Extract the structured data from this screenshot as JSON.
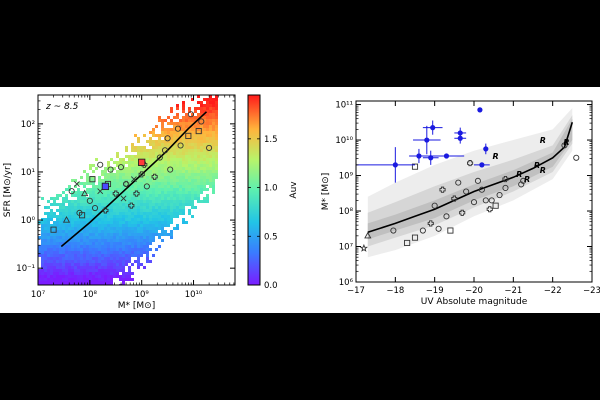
{
  "chart_data": [
    {
      "type": "scatter",
      "name": "sfr-vs-stellar-mass",
      "annotation": "z ~ 8.5",
      "xlabel": "M* [M⊙]",
      "ylabel": "SFR [M⊙/yr]",
      "xscale": "log",
      "yscale": "log",
      "xlim_log10": [
        7.0,
        10.8
      ],
      "ylim_log10": [
        -1.35,
        2.6
      ],
      "x_ticks": [
        {
          "v": 7,
          "label": "10⁷"
        },
        {
          "v": 8,
          "label": "10⁸"
        },
        {
          "v": 9,
          "label": "10⁹"
        },
        {
          "v": 10,
          "label": "10¹⁰"
        }
      ],
      "y_ticks": [
        {
          "v": -1,
          "label": "10⁻¹"
        },
        {
          "v": 0,
          "label": "10⁰"
        },
        {
          "v": 1,
          "label": "10¹"
        },
        {
          "v": 2,
          "label": "10²"
        }
      ],
      "colorbar": {
        "label": "Auv",
        "min": 0.0,
        "max": 1.95,
        "ticks": [
          {
            "v": 0.0,
            "label": "0.0"
          },
          {
            "v": 0.5,
            "label": "0.5"
          },
          {
            "v": 1.0,
            "label": "1.0"
          },
          {
            "v": 1.5,
            "label": "1.5"
          }
        ]
      },
      "mean_relation": {
        "x": [
          7.45,
          8.0,
          8.5,
          9.0,
          9.5,
          9.9,
          10.25
        ],
        "y": [
          -0.55,
          -0.05,
          0.45,
          0.95,
          1.45,
          1.9,
          2.25
        ]
      },
      "observations": [
        {
          "x": 7.3,
          "y": -0.2,
          "m": "square"
        },
        {
          "x": 7.55,
          "y": 0.0,
          "m": "triangle"
        },
        {
          "x": 7.65,
          "y": 0.6,
          "m": "circle"
        },
        {
          "x": 7.8,
          "y": 0.15,
          "m": "circle"
        },
        {
          "x": 7.85,
          "y": 0.1,
          "m": "square"
        },
        {
          "x": 7.9,
          "y": 0.55,
          "m": "triangle"
        },
        {
          "x": 7.75,
          "y": 0.75,
          "m": "x"
        },
        {
          "x": 8.0,
          "y": 0.4,
          "m": "circle"
        },
        {
          "x": 8.05,
          "y": 0.85,
          "m": "square"
        },
        {
          "x": 8.1,
          "y": 0.25,
          "m": "circle"
        },
        {
          "x": 8.2,
          "y": 0.6,
          "m": "x"
        },
        {
          "x": 8.3,
          "y": 0.2,
          "m": "cross"
        },
        {
          "x": 8.35,
          "y": 0.75,
          "m": "square"
        },
        {
          "x": 8.5,
          "y": 0.55,
          "m": "cross"
        },
        {
          "x": 8.4,
          "y": 1.05,
          "m": "circle"
        },
        {
          "x": 8.2,
          "y": 1.15,
          "m": "circle"
        },
        {
          "x": 8.6,
          "y": 1.1,
          "m": "circle"
        },
        {
          "x": 8.65,
          "y": 0.45,
          "m": "x"
        },
        {
          "x": 8.7,
          "y": 0.75,
          "m": "cross"
        },
        {
          "x": 8.8,
          "y": 0.3,
          "m": "cross"
        },
        {
          "x": 8.85,
          "y": 0.85,
          "m": "x"
        },
        {
          "x": 8.9,
          "y": 0.55,
          "m": "cross"
        },
        {
          "x": 9.0,
          "y": 0.95,
          "m": "cross"
        },
        {
          "x": 9.05,
          "y": 1.15,
          "m": "cross"
        },
        {
          "x": 9.1,
          "y": 0.7,
          "m": "circle"
        },
        {
          "x": 9.25,
          "y": 0.9,
          "m": "cross"
        },
        {
          "x": 9.35,
          "y": 1.3,
          "m": "circle"
        },
        {
          "x": 9.45,
          "y": 1.45,
          "m": "circle"
        },
        {
          "x": 9.55,
          "y": 1.05,
          "m": "circle"
        },
        {
          "x": 9.5,
          "y": 1.7,
          "m": "circle"
        },
        {
          "x": 9.7,
          "y": 1.9,
          "m": "circle"
        },
        {
          "x": 9.75,
          "y": 1.55,
          "m": "circle"
        },
        {
          "x": 9.9,
          "y": 1.75,
          "m": "square"
        },
        {
          "x": 10.1,
          "y": 1.85,
          "m": "square"
        },
        {
          "x": 10.15,
          "y": 2.05,
          "m": "circle"
        },
        {
          "x": 10.3,
          "y": 1.5,
          "m": "circle"
        },
        {
          "x": 9.95,
          "y": 2.2,
          "m": "circle"
        }
      ],
      "highlighted": [
        {
          "x": 8.3,
          "y": 0.7,
          "m": "square",
          "color": "#4b4bff"
        },
        {
          "x": 9.0,
          "y": 1.2,
          "m": "square",
          "color": "#ff3a3a"
        }
      ]
    },
    {
      "type": "scatter",
      "name": "stellar-mass-vs-uv-magnitude",
      "xlabel": "UV Absolute magnitude",
      "ylabel": "M* [M⊙]",
      "yscale": "log",
      "xlim": [
        -17.0,
        -23.0
      ],
      "ylim_log10": [
        6.0,
        11.1
      ],
      "x_ticks": [
        {
          "v": -17,
          "label": "−17"
        },
        {
          "v": -18,
          "label": "−18"
        },
        {
          "v": -19,
          "label": "−19"
        },
        {
          "v": -20,
          "label": "−20"
        },
        {
          "v": -21,
          "label": "−21"
        },
        {
          "v": -22,
          "label": "−22"
        },
        {
          "v": -23,
          "label": "−23"
        }
      ],
      "y_ticks": [
        {
          "v": 6,
          "label": "10⁶"
        },
        {
          "v": 7,
          "label": "10⁷"
        },
        {
          "v": 8,
          "label": "10⁸"
        },
        {
          "v": 9,
          "label": "10⁹"
        },
        {
          "v": 10,
          "label": "10¹⁰"
        },
        {
          "v": 11,
          "label": "10¹¹"
        }
      ],
      "median_relation": {
        "x": [
          -17.3,
          -18.0,
          -18.5,
          -19.0,
          -19.5,
          -20.0,
          -20.5,
          -21.0,
          -21.5,
          -22.0,
          -22.3,
          -22.5
        ],
        "y": [
          7.4,
          7.65,
          7.85,
          8.05,
          8.3,
          8.55,
          8.75,
          8.95,
          9.2,
          9.5,
          9.8,
          10.5
        ]
      },
      "scatter_bands": [
        {
          "x": [
            -17.3,
            -18.0,
            -19.0,
            -20.0,
            -21.0,
            -22.0,
            -22.5
          ],
          "lo": [
            6.7,
            6.9,
            7.3,
            7.85,
            8.3,
            8.9,
            9.7
          ],
          "hi": [
            8.4,
            8.8,
            9.3,
            9.7,
            10.0,
            10.3,
            10.9
          ]
        },
        {
          "x": [
            -17.3,
            -18.0,
            -19.0,
            -20.0,
            -21.0,
            -22.0,
            -22.5
          ],
          "lo": [
            7.0,
            7.25,
            7.6,
            8.1,
            8.55,
            9.1,
            9.9
          ],
          "hi": [
            7.95,
            8.25,
            8.7,
            9.1,
            9.45,
            9.85,
            10.7
          ]
        },
        {
          "x": [
            -17.3,
            -18.0,
            -19.0,
            -20.0,
            -21.0,
            -22.0,
            -22.5
          ],
          "lo": [
            7.2,
            7.45,
            7.8,
            8.3,
            8.7,
            9.25,
            10.0
          ],
          "hi": [
            7.65,
            7.9,
            8.3,
            8.75,
            9.15,
            9.65,
            10.6
          ]
        }
      ],
      "blue_points": [
        {
          "x": -18.0,
          "y": 9.3,
          "xerr": [
            1.0,
            0.5
          ],
          "yerr": 0.5
        },
        {
          "x": -18.6,
          "y": 9.55,
          "xerr": [
            0.25,
            0.25
          ],
          "yerr": 0.2
        },
        {
          "x": -18.8,
          "y": 10.0,
          "xerr": [
            0.35,
            0.35
          ],
          "yerr": 0.4
        },
        {
          "x": -18.95,
          "y": 10.35,
          "xerr": [
            0.25,
            0.25
          ],
          "yerr": 0.2
        },
        {
          "x": -18.9,
          "y": 9.5,
          "xerr": [
            0.2,
            0.2
          ],
          "yerr": 0.2
        },
        {
          "x": -19.3,
          "y": 9.55,
          "xerr": [
            0.45,
            0.45
          ],
          "yerr": 0.0
        },
        {
          "x": -19.65,
          "y": 10.2,
          "xerr": [
            0.15,
            0.15
          ],
          "yerr": 0.15
        },
        {
          "x": -19.65,
          "y": 10.05,
          "xerr": [
            0.15,
            0.15
          ],
          "yerr": 0.15
        },
        {
          "x": -20.2,
          "y": 9.3,
          "xerr": [
            0.2,
            0.2
          ],
          "yerr": 0.0
        },
        {
          "x": -20.15,
          "y": 10.85,
          "xerr": [
            0.0,
            0.0
          ],
          "yerr": 0.0
        },
        {
          "x": -20.3,
          "y": 9.75,
          "xerr": [
            0.05,
            0.05
          ],
          "yerr": 0.15
        }
      ],
      "observations": [
        {
          "x": -17.3,
          "y": 7.3,
          "m": "triangle"
        },
        {
          "x": -17.2,
          "y": 6.95,
          "m": "star"
        },
        {
          "x": -17.95,
          "y": 7.45,
          "m": "circle"
        },
        {
          "x": -18.3,
          "y": 7.1,
          "m": "square"
        },
        {
          "x": -18.5,
          "y": 7.25,
          "m": "square"
        },
        {
          "x": -18.5,
          "y": 9.25,
          "m": "square"
        },
        {
          "x": -18.7,
          "y": 7.45,
          "m": "circle"
        },
        {
          "x": -18.9,
          "y": 7.65,
          "m": "cross"
        },
        {
          "x": -19.0,
          "y": 8.15,
          "m": "circle"
        },
        {
          "x": -19.1,
          "y": 7.5,
          "m": "circle"
        },
        {
          "x": -19.2,
          "y": 8.6,
          "m": "cross"
        },
        {
          "x": -19.3,
          "y": 7.85,
          "m": "circle"
        },
        {
          "x": -19.4,
          "y": 7.45,
          "m": "square"
        },
        {
          "x": -19.5,
          "y": 8.35,
          "m": "cross"
        },
        {
          "x": -19.6,
          "y": 8.8,
          "m": "circle"
        },
        {
          "x": -19.7,
          "y": 7.95,
          "m": "cross"
        },
        {
          "x": -19.8,
          "y": 8.55,
          "m": "circle"
        },
        {
          "x": -19.9,
          "y": 9.35,
          "m": "cross"
        },
        {
          "x": -20.0,
          "y": 8.25,
          "m": "circle"
        },
        {
          "x": -20.1,
          "y": 8.85,
          "m": "circle"
        },
        {
          "x": -20.2,
          "y": 8.6,
          "m": "circle"
        },
        {
          "x": -20.3,
          "y": 8.3,
          "m": "circle"
        },
        {
          "x": -20.4,
          "y": 8.05,
          "m": "cross"
        },
        {
          "x": -20.45,
          "y": 8.3,
          "m": "circle"
        },
        {
          "x": -20.55,
          "y": 8.15,
          "m": "square"
        },
        {
          "x": -20.65,
          "y": 8.45,
          "m": "circle"
        },
        {
          "x": -20.8,
          "y": 8.65,
          "m": "circle"
        },
        {
          "x": -20.8,
          "y": 8.9,
          "m": "cross"
        },
        {
          "x": -21.2,
          "y": 8.75,
          "m": "circle"
        },
        {
          "x": -21.25,
          "y": 8.85,
          "m": "circle"
        },
        {
          "x": -22.3,
          "y": 9.85,
          "m": "circle"
        },
        {
          "x": -22.6,
          "y": 9.5,
          "m": "circle"
        }
      ],
      "r_labels": [
        {
          "x": -20.55,
          "y": 9.55,
          "t": "R"
        },
        {
          "x": -21.15,
          "y": 9.05,
          "t": "R"
        },
        {
          "x": -21.35,
          "y": 8.9,
          "t": "R"
        },
        {
          "x": -21.6,
          "y": 9.3,
          "t": "R"
        },
        {
          "x": -21.75,
          "y": 9.15,
          "t": "R"
        },
        {
          "x": -21.75,
          "y": 10.0,
          "t": "R"
        },
        {
          "x": -22.35,
          "y": 9.95,
          "t": "R"
        }
      ]
    }
  ]
}
